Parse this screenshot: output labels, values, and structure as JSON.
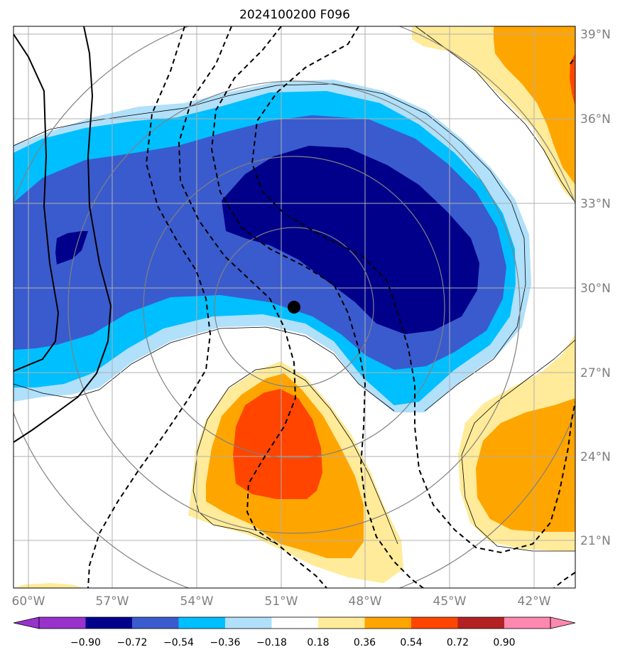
{
  "chart_data": {
    "type": "contour_map",
    "title": "2024100200 F096",
    "x_ticks": [
      "60°W",
      "57°W",
      "54°W",
      "51°W",
      "48°W",
      "45°W",
      "42°W"
    ],
    "y_ticks": [
      "39°N",
      "36°N",
      "33°N",
      "30°N",
      "27°N",
      "24°N",
      "21°N"
    ],
    "lon_range": [
      -60.0,
      -40.0
    ],
    "lat_range": [
      19.5,
      39.3
    ],
    "grid": true,
    "center_marker": {
      "lon": -50.5,
      "lat": 29.3
    },
    "colorbar": {
      "levels": [
        -0.9,
        -0.72,
        -0.54,
        -0.36,
        -0.18,
        0.18,
        0.36,
        0.54,
        0.72,
        0.9
      ],
      "labels": [
        "−0.90",
        "−0.72",
        "−0.54",
        "−0.36",
        "−0.18",
        "0.18",
        "0.36",
        "0.54",
        "0.72",
        "0.90"
      ],
      "colors": [
        "#9932cc",
        "#00008b",
        "#3a5bcd",
        "#00bfff",
        "#b0e0fa",
        "#ffffff",
        "#ffeb99",
        "#ffa500",
        "#ff4500",
        "#b22222",
        "#ff88b0"
      ],
      "extend": "both"
    }
  }
}
